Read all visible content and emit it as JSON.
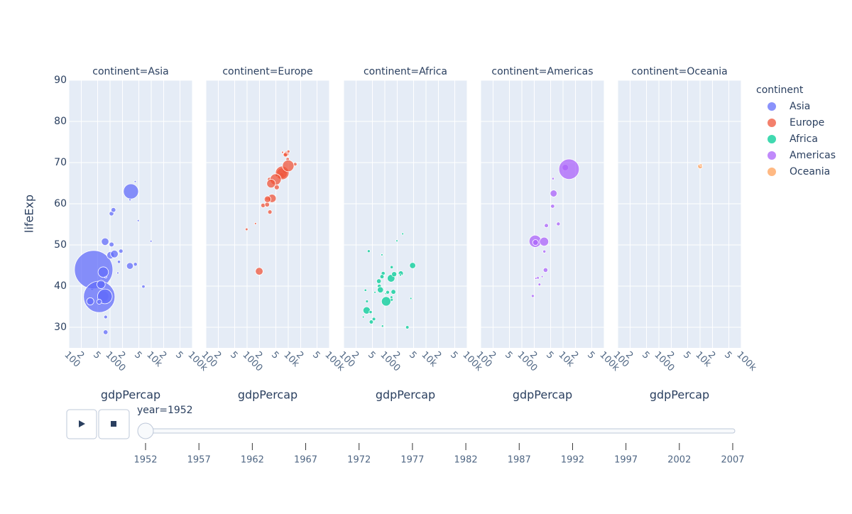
{
  "chart_data": [
    {
      "type": "scatter",
      "title": "continent=Asia",
      "xlabel": "gdpPercap",
      "ylabel": "lifeExp",
      "legend_title": "continent",
      "log_x": true,
      "grid": true,
      "xlim": [
        100,
        100000
      ],
      "xticks": [
        100,
        {
          "value": 200,
          "label": "2"
        },
        {
          "value": 500,
          "label": "5"
        },
        1000,
        {
          "value": 2000,
          "label": "2"
        },
        {
          "value": 5000,
          "label": "5"
        },
        {
          "value": 10000,
          "label": "10k"
        },
        {
          "value": 20000,
          "label": "2"
        },
        {
          "value": 50000,
          "label": "5"
        },
        {
          "value": 100000,
          "label": "100k"
        }
      ],
      "ylim": [
        25,
        90
      ],
      "yticks": [
        30,
        40,
        50,
        60,
        70,
        80,
        90
      ],
      "series": [
        {
          "name": "Asia",
          "color": "#636efa",
          "x": [
            779,
            9867,
            684,
            368,
            400,
            3054,
            547,
            750,
            3035,
            4130,
            4087,
            3217,
            1547,
            1031,
            1088,
            4834,
            1831,
            786,
            331,
            546,
            684,
            1273,
            6460,
            1084,
            1644,
            1207,
            758,
            605,
            782
          ],
          "values": [
            28.8,
            50.9,
            37.5,
            39.4,
            44.0,
            61.0,
            37.4,
            37.5,
            44.9,
            45.3,
            65.4,
            63.0,
            43.2,
            47.5,
            50.1,
            55.9,
            48.5,
            42.2,
            36.3,
            36.2,
            43.4,
            47.8,
            39.9,
            57.6,
            45.9,
            58.5,
            50.8,
            40.4,
            32.5
          ],
          "sizes": [
            8400000,
            120000,
            46900000,
            4700000,
            556000000,
            2100000,
            372000000,
            82000000,
            17000000,
            5400000,
            1600000,
            86000000,
            600000,
            20900000,
            8900000,
            1400000,
            6700000,
            800000,
            20000000,
            9200000,
            41000000,
            22000000,
            4000000,
            7980000,
            3700000,
            8500000,
            21000000,
            26000000,
            4960000
          ]
        }
      ]
    },
    {
      "type": "scatter",
      "title": "continent=Europe",
      "xlabel": "gdpPercap",
      "log_x": true,
      "grid": true,
      "xlim": [
        100,
        100000
      ],
      "xticks": [
        100,
        {
          "value": 200,
          "label": "2"
        },
        {
          "value": 500,
          "label": "5"
        },
        1000,
        {
          "value": 2000,
          "label": "2"
        },
        {
          "value": 5000,
          "label": "5"
        },
        {
          "value": 10000,
          "label": "10k"
        },
        {
          "value": 20000,
          "label": "2"
        },
        {
          "value": 50000,
          "label": "5"
        },
        {
          "value": 100000,
          "label": "100k"
        }
      ],
      "ylim": [
        25,
        90
      ],
      "yticks": [
        30,
        40,
        50,
        60,
        70,
        80,
        90
      ],
      "series": [
        {
          "name": "Europe",
          "color": "#EF553B",
          "x": [
            1601,
            6137,
            8343,
            974,
            2444,
            3119,
            6876,
            9692,
            6425,
            7030,
            7144,
            3531,
            5264,
            7268,
            5211,
            4931,
            8942,
            10095,
            4029,
            3068,
            3145,
            3581,
            3834,
            8528,
            14734,
            1970,
            9980
          ],
          "values": [
            55.2,
            66.8,
            68.0,
            53.8,
            59.6,
            61.2,
            66.9,
            70.8,
            66.6,
            67.4,
            67.5,
            65.9,
            64.0,
            72.5,
            66.9,
            65.9,
            72.1,
            72.7,
            61.3,
            59.8,
            61.1,
            58.0,
            64.9,
            71.9,
            69.6,
            43.6,
            69.2
          ],
          "sizes": [
            1300000,
            6900000,
            8700000,
            2800000,
            7300000,
            3900000,
            9100000,
            4300000,
            4100000,
            42500000,
            69000000,
            7700000,
            9500000,
            150000,
            2950000,
            47700000,
            10400000,
            3300000,
            25700000,
            8500000,
            16600000,
            6900000,
            28500000,
            7100000,
            4800000,
            22000000,
            50400000
          ]
        }
      ]
    },
    {
      "type": "scatter",
      "title": "continent=Africa",
      "xlabel": "gdpPercap",
      "log_x": true,
      "grid": true,
      "xlim": [
        100,
        100000
      ],
      "xticks": [
        100,
        {
          "value": 200,
          "label": "2"
        },
        {
          "value": 500,
          "label": "5"
        },
        1000,
        {
          "value": 2000,
          "label": "2"
        },
        {
          "value": 5000,
          "label": "5"
        },
        {
          "value": 10000,
          "label": "10k"
        },
        {
          "value": 20000,
          "label": "2"
        },
        {
          "value": 50000,
          "label": "5"
        },
        {
          "value": 100000,
          "label": "100k"
        }
      ],
      "ylim": [
        25,
        90
      ],
      "yticks": [
        30,
        40,
        50,
        60,
        70,
        80,
        90
      ],
      "series": [
        {
          "name": "Africa",
          "color": "#00cc96",
          "x": [
            2449,
            3521,
            1063,
            851,
            543,
            339,
            1173,
            1419,
            362,
            911,
            854,
            576,
            2388,
            1443,
            369,
            452,
            1688,
            469,
            1077,
            1450,
            4725,
            1615,
            717,
            1469,
            735,
            407,
            2719,
            1968,
            4293,
            781,
            300,
            880
          ],
          "values": [
            43.1,
            30.0,
            38.2,
            47.6,
            32.0,
            39.0,
            38.5,
            41.9,
            34.1,
            43.1,
            42.3,
            38.5,
            42.7,
            36.7,
            36.3,
            33.7,
            42.9,
            31.3,
            36.3,
            37.3,
            45.0,
            38.6,
            41.2,
            44.6,
            40.0,
            48.5,
            52.7,
            51.0,
            37.0,
            39.1,
            32.5,
            30.3
          ],
          "sizes": [
            9300000,
            4200000,
            1700000,
            440000,
            4500000,
            2400000,
            5000000,
            22000000,
            20000000,
            5600000,
            6500000,
            860000,
            1000000,
            4800000,
            2900000,
            3800000,
            9900000,
            6400000,
            33000000,
            2800000,
            14000000,
            8500000,
            8300000,
            3600000,
            5800000,
            3100000,
            260000,
            500000,
            420000,
            14000000,
            580000,
            2100000
          ]
        }
      ]
    },
    {
      "type": "scatter",
      "title": "continent=Americas",
      "xlabel": "gdpPercap",
      "log_x": true,
      "grid": true,
      "xlim": [
        100,
        100000
      ],
      "xticks": [
        100,
        {
          "value": 200,
          "label": "2"
        },
        {
          "value": 500,
          "label": "5"
        },
        1000,
        {
          "value": 2000,
          "label": "2"
        },
        {
          "value": 5000,
          "label": "5"
        },
        {
          "value": 10000,
          "label": "10k"
        },
        {
          "value": 20000,
          "label": "2"
        },
        {
          "value": 50000,
          "label": "5"
        },
        {
          "value": 100000,
          "label": "100k"
        }
      ],
      "ylim": [
        25,
        90
      ],
      "yticks": [
        30,
        40,
        50,
        60,
        70,
        80,
        90
      ],
      "series": [
        {
          "name": "Americas",
          "color": "#ab63fa",
          "x": [
            5911,
            2677,
            2109,
            11367,
            3940,
            2144,
            5587,
            3522,
            2428,
            1840,
            3478,
            3759,
            13990,
            5717,
            7690,
            3112,
            2195
          ],
          "values": [
            62.5,
            40.4,
            50.9,
            68.8,
            54.7,
            50.6,
            59.4,
            48.4,
            42.0,
            37.6,
            50.8,
            43.9,
            68.4,
            66.1,
            55.1,
            42.3,
            41.9
          ],
          "sizes": [
            17900000,
            2900000,
            56600000,
            14800000,
            6400000,
            12400000,
            6000000,
            3500000,
            3100000,
            3200000,
            30000000,
            8000000,
            157000000,
            2250000,
            5400000,
            1200000,
            1500000
          ]
        }
      ]
    },
    {
      "type": "scatter",
      "title": "continent=Oceania",
      "xlabel": "gdpPercap",
      "log_x": true,
      "grid": true,
      "xlim": [
        100,
        100000
      ],
      "xticks": [
        100,
        {
          "value": 200,
          "label": "2"
        },
        {
          "value": 500,
          "label": "5"
        },
        1000,
        {
          "value": 2000,
          "label": "2"
        },
        {
          "value": 5000,
          "label": "5"
        },
        {
          "value": 10000,
          "label": "10k"
        },
        {
          "value": 20000,
          "label": "2"
        },
        {
          "value": 50000,
          "label": "5"
        },
        {
          "value": 100000,
          "label": "100k"
        }
      ],
      "ylim": [
        25,
        90
      ],
      "yticks": [
        30,
        40,
        50,
        60,
        70,
        80,
        90
      ],
      "series": [
        {
          "name": "Oceania",
          "color": "#FFA15A",
          "x": [
            10040,
            10557
          ],
          "values": [
            69.1,
            69.4
          ],
          "sizes": [
            8700000,
            1990000
          ]
        }
      ]
    }
  ],
  "slider": {
    "label": "year=1952",
    "steps": [
      1952,
      1957,
      1962,
      1967,
      1972,
      1977,
      1982,
      1987,
      1992,
      1997,
      2002,
      2007
    ]
  }
}
